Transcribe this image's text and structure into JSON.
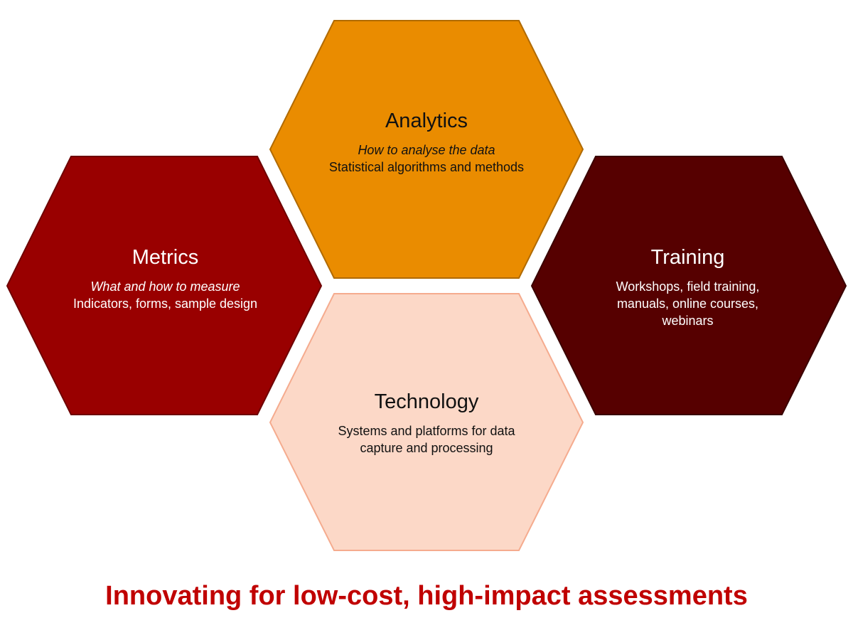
{
  "colors": {
    "analytics_fill": "#ea8c00",
    "analytics_stroke": "#b06a00",
    "metrics_fill": "#990000",
    "metrics_stroke": "#6e0000",
    "training_fill": "#560000",
    "training_stroke": "#3a0000",
    "technology_fill": "#fcd8c7",
    "technology_stroke": "#f5ab8e",
    "tagline": "#c00000"
  },
  "hexagons": {
    "analytics": {
      "title": "Analytics",
      "subtitle": "How to analyse the data",
      "description": "Statistical algorithms and methods"
    },
    "metrics": {
      "title": "Metrics",
      "subtitle": "What and how to measure",
      "description": "Indicators, forms, sample design"
    },
    "training": {
      "title": "Training",
      "description": "Workshops, field training, manuals, online courses, webinars"
    },
    "technology": {
      "title": "Technology",
      "description": "Systems and platforms for data capture and processing"
    }
  },
  "tagline": "Innovating for low-cost, high-impact assessments"
}
